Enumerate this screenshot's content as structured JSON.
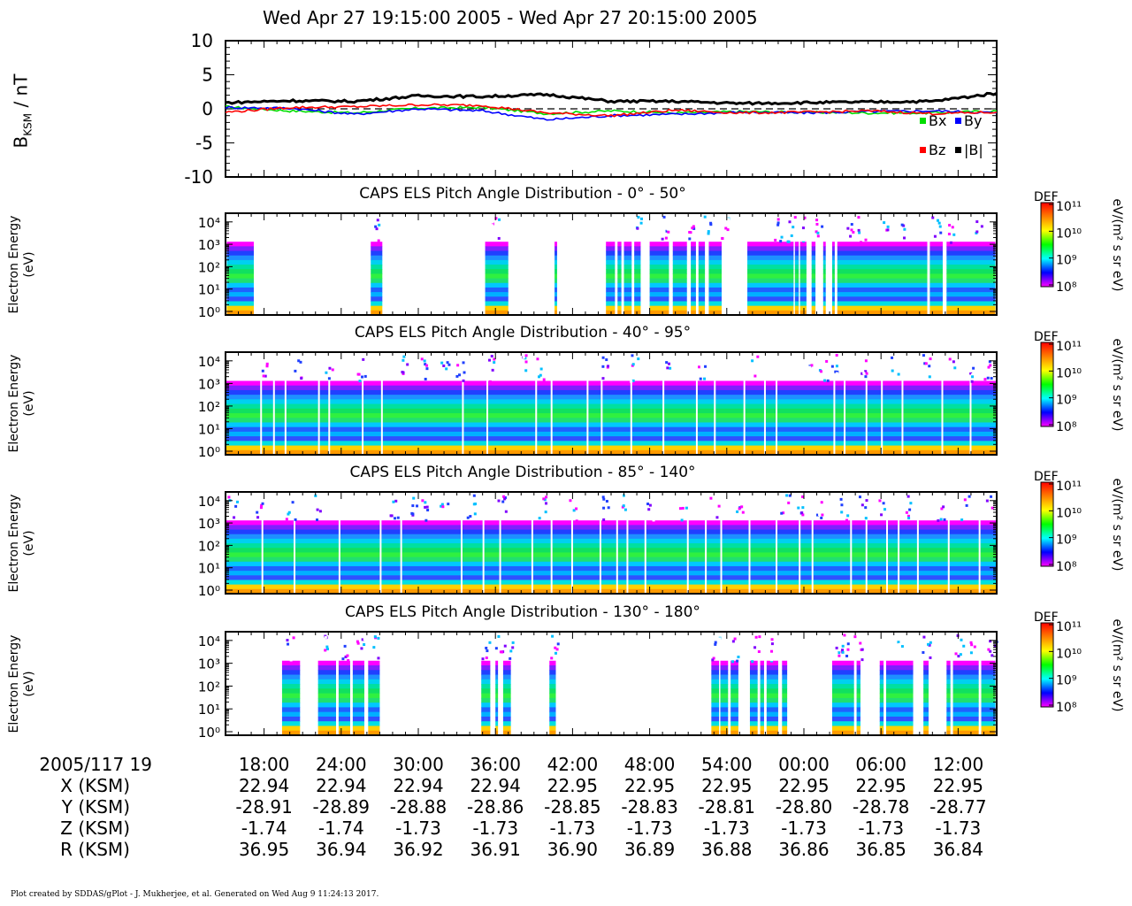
{
  "chart_title": "Wed Apr 27 19:15:00 2005 - Wed Apr 27 20:15:00 2005",
  "credit": "Plot created by SDDAS/gPlot - J. Mukherjee, et al.  Generated on Wed Aug 9 11:24:13 2017.",
  "footer": {
    "row_labels": [
      "2005/117 19",
      "X (KSM)",
      "Y (KSM)",
      "Z (KSM)",
      "R (KSM)"
    ],
    "times": [
      "18:00",
      "24:00",
      "30:00",
      "36:00",
      "42:00",
      "48:00",
      "54:00",
      "00:00",
      "06:00",
      "12:00"
    ],
    "X": [
      "22.94",
      "22.94",
      "22.94",
      "22.94",
      "22.95",
      "22.95",
      "22.95",
      "22.95",
      "22.95",
      "22.95"
    ],
    "Y": [
      "-28.91",
      "-28.89",
      "-28.88",
      "-28.86",
      "-28.85",
      "-28.83",
      "-28.81",
      "-28.80",
      "-28.78",
      "-28.77"
    ],
    "Z": [
      "-1.74",
      "-1.74",
      "-1.73",
      "-1.73",
      "-1.73",
      "-1.73",
      "-1.73",
      "-1.73",
      "-1.73",
      "-1.73"
    ],
    "R": [
      "36.95",
      "36.94",
      "36.92",
      "36.91",
      "36.90",
      "36.89",
      "36.88",
      "36.86",
      "36.85",
      "36.84"
    ]
  },
  "colorbar": {
    "label": "DEF",
    "unit": "eV/(m² s sr eV)",
    "ticks": [
      "10¹¹",
      "10¹⁰",
      "10⁹",
      "10⁸"
    ],
    "colors": [
      "#ff0000",
      "#ff8000",
      "#ffff00",
      "#00ff00",
      "#00ffff",
      "#0000ff",
      "#ff00ff"
    ]
  },
  "chart_data": [
    {
      "type": "line",
      "panel": "magnetic-field",
      "ylabel": "B_KSM / nT",
      "ylim": [
        -10,
        10
      ],
      "y_ticks": [
        "10",
        "5",
        "0",
        "-5",
        "-10"
      ],
      "x_start_minute": 15,
      "x_end_minute": 75,
      "legend": [
        "Bx",
        "By",
        "Bz",
        "|B|"
      ],
      "legend_placement": "bottom-right",
      "series": [
        {
          "name": "Bx",
          "color": "#00dd00",
          "x": [
            15,
            20,
            25,
            30,
            35,
            40,
            45,
            50,
            55,
            60,
            65,
            70,
            75
          ],
          "values": [
            0.3,
            -0.3,
            -0.6,
            0.1,
            0.2,
            -0.7,
            -0.3,
            -0.6,
            -0.4,
            -0.5,
            -0.6,
            -0.6,
            -0.3
          ]
        },
        {
          "name": "By",
          "color": "#0000ff",
          "x": [
            15,
            20,
            25,
            30,
            35,
            40,
            45,
            50,
            55,
            60,
            65,
            70,
            75
          ],
          "values": [
            0.2,
            0.1,
            -0.8,
            0.0,
            -0.3,
            -1.6,
            -1.0,
            -0.8,
            -0.5,
            -0.6,
            -0.4,
            -0.3,
            -0.6
          ]
        },
        {
          "name": "Bz",
          "color": "#ff0000",
          "x": [
            15,
            20,
            25,
            30,
            35,
            40,
            45,
            50,
            55,
            60,
            65,
            70,
            75
          ],
          "values": [
            -0.5,
            0.2,
            0.3,
            0.6,
            0.5,
            -0.6,
            -1.0,
            -0.2,
            -0.6,
            -0.5,
            -0.3,
            -0.7,
            -0.5
          ]
        },
        {
          "name": "|B|",
          "color": "#000000",
          "x": [
            15,
            20,
            25,
            30,
            35,
            40,
            45,
            50,
            55,
            60,
            65,
            70,
            75
          ],
          "values": [
            0.9,
            1.2,
            1.1,
            1.9,
            1.8,
            2.1,
            1.1,
            1.1,
            0.8,
            0.9,
            1.0,
            1.1,
            2.3
          ]
        }
      ]
    },
    {
      "type": "heatmap",
      "panel": "els-0-50",
      "title": "CAPS ELS Pitch Angle Distribution - 0° - 50°",
      "ylabel": [
        "Electron Energy",
        "(eV)"
      ],
      "y_ticks": [
        "10⁴",
        "10³",
        "10²",
        "10¹",
        "10⁰"
      ],
      "x_start_minute": 15,
      "x_end_minute": 75,
      "coverage_minutes": [
        [
          15.1,
          17.2
        ],
        [
          26.3,
          27.2
        ],
        [
          35.2,
          37.0
        ],
        [
          40.6,
          40.8
        ],
        [
          44.6,
          45.3
        ],
        [
          45.5,
          45.8
        ],
        [
          46.0,
          46.6
        ],
        [
          46.8,
          47.3
        ],
        [
          48.0,
          49.5
        ],
        [
          49.8,
          50.9
        ],
        [
          51.2,
          51.6
        ],
        [
          51.8,
          52.3
        ],
        [
          52.6,
          53.6
        ],
        [
          55.6,
          59.2
        ],
        [
          59.3,
          59.6
        ],
        [
          59.7,
          60.2
        ],
        [
          60.6,
          60.9
        ],
        [
          61.5,
          61.7
        ],
        [
          62.2,
          62.4
        ],
        [
          62.6,
          69.6
        ],
        [
          69.8,
          70.8
        ],
        [
          71.1,
          74.9
        ]
      ],
      "bursts_minutes": [
        26.6,
        35.9,
        47.0,
        49.2,
        51.0,
        52.4,
        53.8,
        58.0,
        59.0,
        60.0,
        61.0,
        63.5,
        64.5,
        66.2,
        67.5,
        70.2,
        71.5,
        73.6
      ]
    },
    {
      "type": "heatmap",
      "panel": "els-40-95",
      "title": "CAPS ELS Pitch Angle Distribution - 40° - 95°",
      "ylabel": [
        "Electron Energy",
        "(eV)"
      ],
      "y_ticks": [
        "10⁴",
        "10³",
        "10²",
        "10¹",
        "10⁰"
      ],
      "x_start_minute": 15,
      "x_end_minute": 75,
      "coverage_minutes": [
        [
          15.0,
          75.0
        ]
      ],
      "gaps_minutes": [
        17.7,
        18.7,
        19.6,
        22.2,
        23.0,
        25.6,
        27.1,
        33.4,
        35.3,
        39.1,
        40.3,
        43.1,
        44.2,
        46.5,
        49.0,
        51.6,
        53.0,
        55.3,
        56.9,
        57.8,
        62.3,
        63.1,
        64.8,
        66.0,
        67.6,
        70.7,
        72.9
      ],
      "bursts_minutes": [
        18.0,
        20.5,
        23.0,
        25.5,
        28.8,
        30.5,
        32.0,
        33.2,
        35.5,
        38.0,
        39.5,
        44.5,
        46.8,
        49.5,
        52.0,
        56.0,
        60.5,
        61.5,
        62.2,
        64.5,
        67.0,
        69.5,
        71.5,
        73.0,
        74.2
      ]
    },
    {
      "type": "heatmap",
      "panel": "els-85-140",
      "title": "CAPS ELS Pitch Angle Distribution - 85° - 140°",
      "ylabel": [
        "Electron Energy",
        "(eV)"
      ],
      "y_ticks": [
        "10⁴",
        "10³",
        "10²",
        "10¹",
        "10⁰"
      ],
      "x_start_minute": 15,
      "x_end_minute": 75,
      "coverage_minutes": [
        [
          15.0,
          75.0
        ]
      ],
      "gaps_minutes": [
        17.8,
        20.3,
        23.8,
        27.0,
        28.6,
        33.3,
        35.0,
        36.3,
        38.8,
        40.3,
        41.9,
        44.1,
        45.4,
        46.2,
        47.6,
        50.9,
        52.3,
        53.5,
        55.7,
        57.8,
        59.6,
        60.6,
        63.6,
        64.8,
        66.4,
        67.3,
        68.8,
        71.2,
        73.6
      ],
      "bursts_minutes": [
        15.5,
        17.5,
        20.0,
        22.0,
        28.0,
        29.5,
        30.5,
        32.0,
        34.0,
        36.5,
        39.5,
        42.0,
        44.5,
        46.0,
        48.0,
        50.5,
        53.0,
        55.0,
        58.5,
        59.5,
        61.0,
        63.0,
        64.5,
        66.0,
        68.0,
        70.5,
        72.5,
        74.5
      ]
    },
    {
      "type": "heatmap",
      "panel": "els-130-180",
      "title": "CAPS ELS Pitch Angle Distribution - 130° - 180°",
      "ylabel": [
        "Electron Energy",
        "(eV)"
      ],
      "y_ticks": [
        "10⁴",
        "10³",
        "10²",
        "10¹",
        "10⁰"
      ],
      "x_start_minute": 15,
      "x_end_minute": 75,
      "coverage_minutes": [
        [
          19.4,
          20.8
        ],
        [
          22.2,
          23.6
        ],
        [
          23.8,
          24.7
        ],
        [
          24.9,
          25.8
        ],
        [
          26.1,
          27.0
        ],
        [
          34.9,
          35.6
        ],
        [
          36.0,
          36.2
        ],
        [
          36.6,
          37.2
        ],
        [
          40.2,
          40.7
        ],
        [
          52.8,
          53.4
        ],
        [
          53.5,
          54.1
        ],
        [
          54.3,
          54.9
        ],
        [
          55.8,
          56.4
        ],
        [
          56.6,
          56.9
        ],
        [
          57.1,
          58.0
        ],
        [
          58.3,
          58.7
        ],
        [
          62.2,
          63.9
        ],
        [
          64.1,
          64.4
        ],
        [
          65.9,
          66.2
        ],
        [
          66.4,
          68.5
        ],
        [
          69.3,
          69.7
        ],
        [
          71.1,
          71.4
        ],
        [
          71.6,
          73.6
        ],
        [
          73.8,
          74.9
        ]
      ],
      "bursts_minutes": [
        19.9,
        22.7,
        24.2,
        25.4,
        26.5,
        35.2,
        36.3,
        37.0,
        40.5,
        53.1,
        54.6,
        56.2,
        57.5,
        62.6,
        63.2,
        64.2,
        67.3,
        69.5,
        72.0,
        73.2,
        74.6
      ]
    }
  ]
}
